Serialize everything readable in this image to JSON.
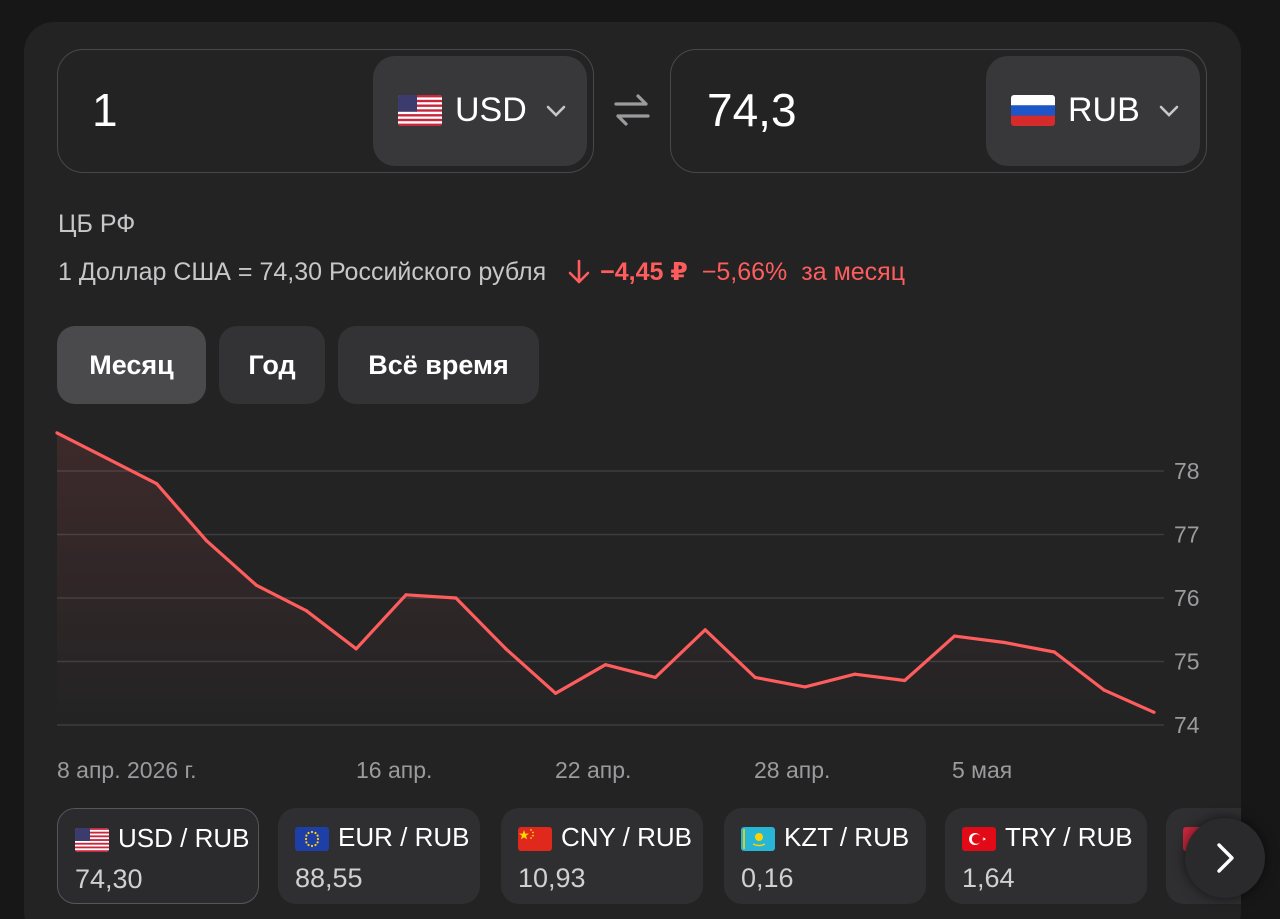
{
  "converter": {
    "from": {
      "amount": "1",
      "currency": "USD",
      "flag": "us-flag-icon"
    },
    "to": {
      "amount": "74,3",
      "currency": "RUB",
      "flag": "ru-flag-icon"
    }
  },
  "source": "ЦБ РФ",
  "rate": {
    "text": "1 Доллар США = 74,30 Российского рубля",
    "change_abs": "−4,45 ₽",
    "change_pct": "−5,66%",
    "period": "за месяц",
    "trend_color": "#ff5d5d"
  },
  "tabs": [
    {
      "label": "Месяц",
      "active": true
    },
    {
      "label": "Год",
      "active": false
    },
    {
      "label": "Всё время",
      "active": false
    }
  ],
  "chart_data": {
    "type": "line",
    "y_ticks": [
      "78",
      "77",
      "76",
      "75",
      "74"
    ],
    "x_labels": [
      "8 апр. 2026 г.",
      "16 апр.",
      "22 апр.",
      "28 апр.",
      "5 мая"
    ],
    "ylim": [
      74,
      78.5
    ],
    "line_color": "#ff5d5d",
    "grid": true,
    "values": [
      78.6,
      78.2,
      77.8,
      76.9,
      76.2,
      75.8,
      75.2,
      76.05,
      76.0,
      75.2,
      74.5,
      74.95,
      74.75,
      75.5,
      74.75,
      74.6,
      74.8,
      74.7,
      75.4,
      75.3,
      75.15,
      74.55,
      74.2
    ]
  },
  "tickers": [
    {
      "pair": "USD / RUB",
      "value": "74,30",
      "flag": "us-flag-icon",
      "active": true
    },
    {
      "pair": "EUR / RUB",
      "value": "88,55",
      "flag": "eu-flag-icon",
      "active": false
    },
    {
      "pair": "CNY / RUB",
      "value": "10,93",
      "flag": "cn-flag-icon",
      "active": false
    },
    {
      "pair": "KZT / RUB",
      "value": "0,16",
      "flag": "kz-flag-icon",
      "active": false
    },
    {
      "pair": "TRY / RUB",
      "value": "1,64",
      "flag": "tr-flag-icon",
      "active": false
    }
  ]
}
